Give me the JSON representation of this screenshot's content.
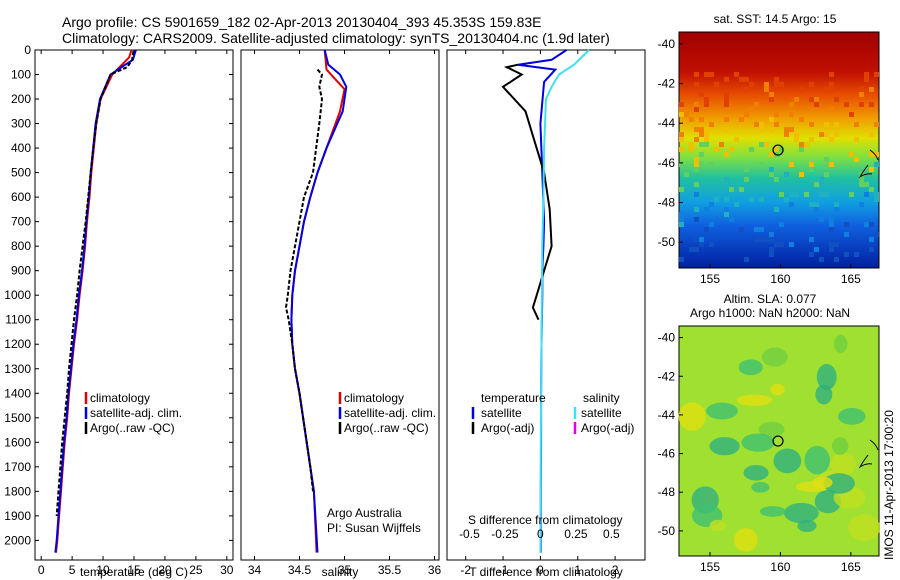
{
  "header": {
    "line1": "Argo profile: CS 5901659_182 02-Apr-2013 20130404_393 45.353S 159.83E",
    "line2": "Climatology: CARS2009. Satellite-adjusted climatology: synTS_20130404.nc (1.9d later)"
  },
  "side_stamp": "IMOS 11-Apr-2013 17:00:20",
  "chart_data": [
    {
      "id": "temperature",
      "type": "line",
      "xlabel": "temperature (deg C)",
      "ylabel": "",
      "xlim": [
        -1,
        31
      ],
      "ylim": [
        2080,
        0
      ],
      "xticks": [
        0,
        5,
        10,
        15,
        20,
        25,
        30
      ],
      "yticks": [
        0,
        100,
        200,
        300,
        400,
        500,
        600,
        700,
        800,
        900,
        1000,
        1100,
        1200,
        1300,
        1400,
        1500,
        1600,
        1700,
        1800,
        1900,
        2000
      ],
      "legend": [
        "climatology",
        "satellite-adj. clim.",
        "Argo(..raw -QC)"
      ],
      "annotations": [],
      "series": [
        {
          "name": "climatology",
          "color": "#e00000",
          "x": [
            14.6,
            14.2,
            11.5,
            9.6,
            8.9,
            8.5,
            8.1,
            7.8,
            7.4,
            7.1,
            6.7,
            6.2,
            5.8,
            5.3,
            4.9,
            4.5,
            4.2,
            3.8,
            3.5,
            3.2,
            2.9,
            2.6,
            2.4
          ],
          "y": [
            0,
            30,
            100,
            200,
            300,
            400,
            500,
            600,
            700,
            800,
            900,
            1000,
            1100,
            1200,
            1300,
            1400,
            1500,
            1600,
            1700,
            1800,
            1900,
            2000,
            2050
          ]
        },
        {
          "name": "satellite-adj. clim.",
          "color": "#0000e0",
          "x": [
            15.3,
            14.8,
            11.2,
            9.5,
            8.8,
            8.4,
            8.0,
            7.7,
            7.3,
            7.0,
            6.6,
            6.1,
            5.7,
            5.2,
            4.8,
            4.4,
            4.1,
            3.7,
            3.4,
            3.1,
            2.8,
            2.5,
            2.3
          ],
          "y": [
            0,
            40,
            100,
            200,
            300,
            400,
            500,
            600,
            700,
            800,
            900,
            1000,
            1100,
            1200,
            1300,
            1400,
            1500,
            1600,
            1700,
            1800,
            1900,
            2000,
            2050
          ]
        },
        {
          "name": "Argo(..raw -QC)",
          "color": "#000000",
          "x": [
            14.9,
            14.7,
            13.9,
            11.2,
            9.6,
            8.9,
            8.4,
            8.0,
            7.6,
            7.2,
            6.7,
            6.2,
            5.8,
            5.3,
            4.9,
            4.5,
            4.2,
            3.8,
            3.4,
            3.1,
            2.8,
            2.5
          ],
          "y": [
            5,
            40,
            70,
            100,
            200,
            300,
            400,
            500,
            600,
            700,
            800,
            900,
            1000,
            1100,
            1200,
            1300,
            1400,
            1500,
            1600,
            1700,
            1800,
            1900
          ]
        }
      ]
    },
    {
      "id": "salinity",
      "type": "line",
      "xlabel": "salinity",
      "ylabel": "",
      "xlim": [
        33.85,
        36.05
      ],
      "ylim": [
        2080,
        0
      ],
      "xticks": [
        34,
        34.5,
        35,
        35.5,
        36
      ],
      "yticks": [],
      "legend": [
        "climatology",
        "satellite-adj. clim.",
        "Argo(..raw -QC)"
      ],
      "annotations": [
        "Argo Australia",
        "PI: Susan Wijffels"
      ],
      "series": [
        {
          "name": "climatology",
          "color": "#e00000",
          "x": [
            34.78,
            34.8,
            34.9,
            35.0,
            34.95,
            34.8,
            34.7,
            34.62,
            34.55,
            34.5,
            34.45,
            34.42,
            34.41,
            34.42,
            34.45,
            34.5,
            34.54,
            34.58,
            34.62,
            34.66,
            34.69
          ],
          "y": [
            0,
            80,
            120,
            160,
            250,
            400,
            500,
            600,
            700,
            800,
            900,
            1000,
            1100,
            1200,
            1300,
            1400,
            1500,
            1600,
            1700,
            1800,
            2050
          ]
        },
        {
          "name": "satellite-adj. clim.",
          "color": "#0000e0",
          "x": [
            34.78,
            34.82,
            34.95,
            35.02,
            34.98,
            34.8,
            34.7,
            34.62,
            34.55,
            34.5,
            34.45,
            34.42,
            34.41,
            34.42,
            34.45,
            34.5,
            34.54,
            34.58,
            34.62,
            34.66,
            34.7
          ],
          "y": [
            0,
            60,
            100,
            150,
            250,
            400,
            500,
            600,
            700,
            800,
            900,
            1000,
            1100,
            1200,
            1300,
            1400,
            1500,
            1600,
            1700,
            1800,
            2050
          ]
        },
        {
          "name": "Argo(..raw -QC)",
          "color": "#000000",
          "x": [
            34.7,
            34.75,
            34.72,
            34.75,
            34.72,
            34.65,
            34.55,
            34.5,
            34.45,
            34.4,
            34.37,
            34.35,
            34.38,
            34.42,
            34.45,
            34.5,
            34.54,
            34.58,
            34.62,
            34.65
          ],
          "y": [
            80,
            100,
            150,
            200,
            300,
            500,
            600,
            700,
            800,
            900,
            1000,
            1050,
            1100,
            1200,
            1300,
            1400,
            1500,
            1600,
            1700,
            1800
          ]
        }
      ]
    },
    {
      "id": "difference",
      "type": "line",
      "xlabel": "T difference from climatology",
      "ylabel": "",
      "xlim": [
        -2.5,
        2.8
      ],
      "ylim": [
        2080,
        0
      ],
      "xticks": [
        -2,
        -1,
        0,
        1,
        2
      ],
      "yticks": [],
      "top_axis_label": "S difference from climatology",
      "top_axis_ticks": [
        "-0.5",
        "-0.25",
        "0",
        "0.25",
        "0.5"
      ],
      "legend_titles": [
        "temperature",
        "salinity"
      ],
      "legend": [
        "satellite",
        "Argo(-adj)",
        "satellite",
        "Argo(-adj)"
      ],
      "annotations": [],
      "series": [
        {
          "name": "temperature satellite",
          "color": "#0000e0",
          "x": [
            0.7,
            0.3,
            -0.6,
            0.4,
            0.1,
            0,
            0.05,
            0.1,
            0.08,
            0.05,
            0.05,
            0.03,
            0.02,
            0.02,
            0.01,
            0.01
          ],
          "y": [
            0,
            40,
            60,
            80,
            130,
            300,
            500,
            700,
            800,
            900,
            1000,
            1200,
            1400,
            1600,
            1800,
            2050
          ]
        },
        {
          "name": "temperature Argo(-adj)",
          "color": "#000000",
          "x": [
            -0.6,
            -0.9,
            -0.5,
            -1.0,
            -0.7,
            -0.4,
            -0.2,
            0.1,
            0.25,
            0.3,
            0.1,
            0.0,
            -0.1,
            -0.2,
            -0.05
          ],
          "y": [
            60,
            70,
            100,
            150,
            200,
            250,
            350,
            500,
            650,
            800,
            900,
            950,
            1000,
            1050,
            1100
          ]
        },
        {
          "name": "salinity satellite",
          "color": "#40e0f0",
          "x": [
            1.3,
            0.9,
            0.5,
            0.3,
            0.15,
            0.1,
            0.08,
            0.05,
            0.04,
            0.03,
            0.02,
            0.01,
            0.0
          ],
          "y": [
            0,
            60,
            100,
            150,
            200,
            400,
            600,
            800,
            1000,
            1200,
            1400,
            1600,
            2050
          ]
        }
      ]
    }
  ],
  "maps": [
    {
      "id": "sst-map",
      "title": "sat. SST: 14.5 Argo: 15",
      "xticks": [
        "155",
        "160",
        "165"
      ],
      "yticks": [
        "-40",
        "-42",
        "-44",
        "-46",
        "-48",
        "-50"
      ],
      "lon_range": [
        152.8,
        167.0
      ],
      "lat_range": [
        -51.3,
        -39.4
      ],
      "float_position": [
        159.83,
        -45.353
      ]
    },
    {
      "id": "sla-map",
      "title": "Altim. SLA: 0.077",
      "subtitle": "Argo h1000: NaN h2000: NaN",
      "xticks": [
        "155",
        "160",
        "165"
      ],
      "yticks": [
        "-40",
        "-42",
        "-44",
        "-46",
        "-48",
        "-50"
      ],
      "lon_range": [
        152.8,
        167.0
      ],
      "lat_range": [
        -51.3,
        -39.4
      ],
      "float_position": [
        159.83,
        -45.353
      ]
    }
  ]
}
